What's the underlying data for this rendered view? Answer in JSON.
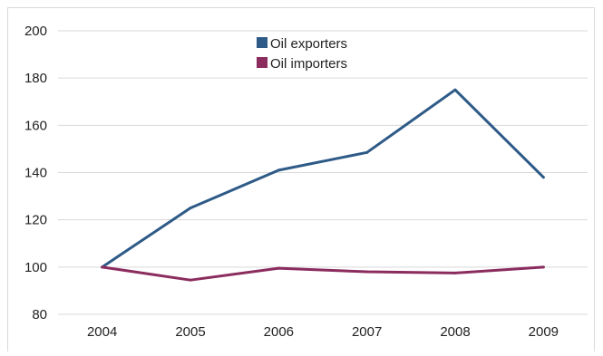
{
  "chart_data": {
    "type": "line",
    "x": [
      "2004",
      "2005",
      "2006",
      "2007",
      "2008",
      "2009"
    ],
    "series": [
      {
        "name": "Oil exporters",
        "values": [
          100,
          125,
          141,
          148.5,
          175,
          138
        ],
        "color": "#2e5a87"
      },
      {
        "name": "Oil importers",
        "values": [
          100,
          94.5,
          99.5,
          98,
          97.5,
          100
        ],
        "color": "#8b2c5e"
      }
    ],
    "ylim": [
      80,
      200
    ],
    "yticks": [
      80,
      100,
      120,
      140,
      160,
      180,
      200
    ],
    "grid": true,
    "legend_position": "top-center",
    "title": "",
    "xlabel": "",
    "ylabel": ""
  }
}
